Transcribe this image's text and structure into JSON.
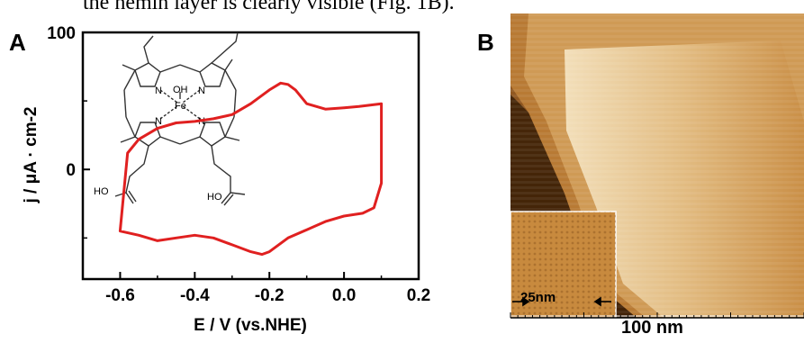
{
  "caption": {
    "text": "the hemin layer is clearly visible (Fig. 1B)."
  },
  "panel_a": {
    "label": "A",
    "molecule_labels": {
      "oh": "OH",
      "fe": "Fe",
      "n": "N",
      "ho_left": "HO",
      "ho_right": "HO"
    }
  },
  "chart_data": {
    "type": "line",
    "title": "",
    "xlabel": "E / V (vs.NHE)",
    "ylabel": "j / μA · cm-2",
    "xlim": [
      -0.7,
      0.2
    ],
    "ylim": [
      -80,
      100
    ],
    "x_ticks": [
      "-0.6",
      "-0.4",
      "-0.2",
      "0.0",
      "0.2"
    ],
    "y_ticks": [
      "100",
      "0"
    ],
    "grid": false,
    "series": [
      {
        "color": "#e02020",
        "x": [
          -0.6,
          -0.55,
          -0.5,
          -0.45,
          -0.4,
          -0.35,
          -0.3,
          -0.25,
          -0.22,
          -0.2,
          -0.15,
          -0.1,
          -0.05,
          0.0,
          0.05,
          0.08,
          0.1,
          0.1,
          0.07,
          0.04,
          0.0,
          -0.05,
          -0.1,
          -0.13,
          -0.15,
          -0.17,
          -0.2,
          -0.25,
          -0.3,
          -0.35,
          -0.4,
          -0.45,
          -0.5,
          -0.55,
          -0.58,
          -0.6
        ],
        "y": [
          -45,
          -48,
          -52,
          -50,
          -48,
          -50,
          -55,
          -60,
          -62,
          -60,
          -50,
          -44,
          -38,
          -34,
          -32,
          -28,
          -10,
          48,
          47,
          46,
          45,
          44,
          48,
          58,
          62,
          63,
          58,
          48,
          40,
          37,
          35,
          34,
          30,
          22,
          12,
          -45
        ]
      }
    ]
  },
  "panel_b": {
    "label": "B",
    "scale_label": "100 nm",
    "inset_label": "25nm"
  },
  "colors": {
    "cv_line": "#e02020",
    "frame": "#000000"
  }
}
